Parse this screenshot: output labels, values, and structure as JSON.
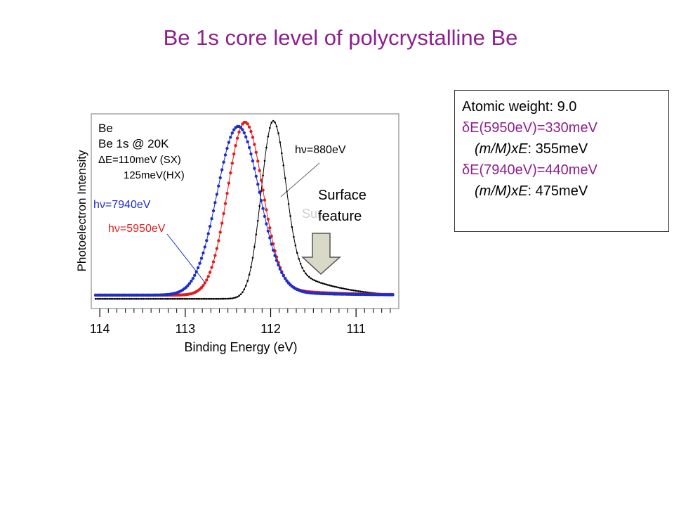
{
  "slide": {
    "title": "Be 1s core level of polycrystalline Be"
  },
  "info_box": {
    "line1": "Atomic weight: 9.0",
    "line2": "δE(5950eV)=330meV",
    "line3_prefix": "(m/M)xE",
    "line3_suffix": ": 355meV",
    "line4": "δE(7940eV)=440meV",
    "line5_prefix": "(m/M)xE",
    "line5_suffix": ": 475meV"
  },
  "annotation": {
    "surface_label": "Surface\nfeature",
    "surface_ghost": "Sur"
  },
  "colors": {
    "title": "#8e1f8e",
    "series_880": "#000000",
    "series_5950": "#e31c1c",
    "series_7940": "#1c2ecc",
    "arrow_fill": "#d9d9c8"
  },
  "chart_data": {
    "type": "line",
    "xlabel": "Binding Energy (eV)",
    "ylabel": "Photoelectron Intensity",
    "xlim": [
      114.1,
      110.5
    ],
    "x_reversed": true,
    "ylim": [
      0,
      1
    ],
    "x_ticks": [
      114,
      113,
      112,
      111
    ],
    "legend_text": [
      "Be",
      "Be 1s @ 20K",
      "ΔE=110meV (SX)",
      "125meV(HX)"
    ],
    "series": [
      {
        "name": "hν=880eV",
        "center": 111.97,
        "width": 0.33,
        "peak": 1.0,
        "tail": 0.22,
        "baseline": 0.03
      },
      {
        "name": "hν=5950eV",
        "center": 112.3,
        "width": 0.48,
        "peak": 0.993,
        "tail": 0.06,
        "baseline": 0.05
      },
      {
        "name": "hν=7940eV",
        "center": 112.38,
        "width": 0.58,
        "peak": 0.97,
        "tail": 0.04,
        "baseline": 0.05
      }
    ]
  }
}
